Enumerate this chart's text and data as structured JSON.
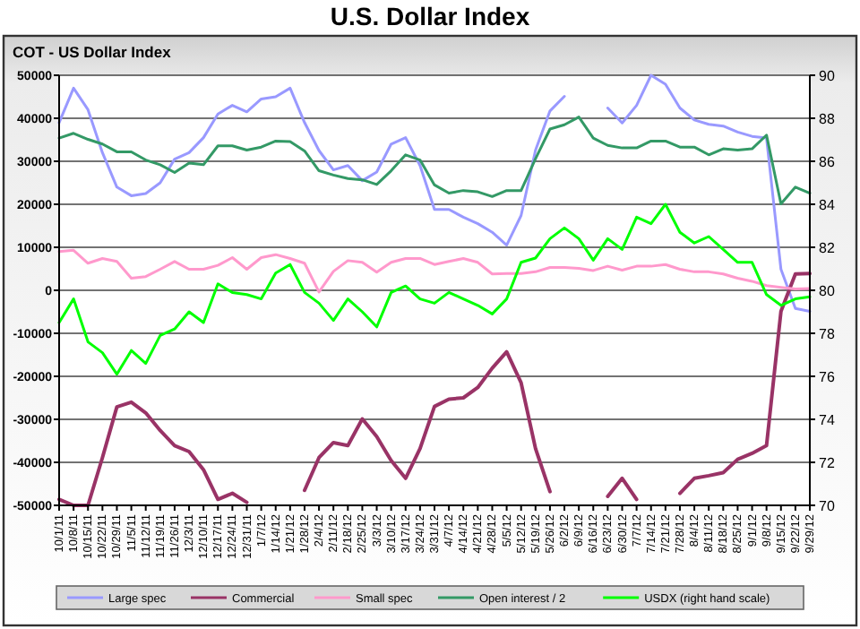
{
  "chart_data": {
    "type": "line",
    "title": "U.S. Dollar Index",
    "subtitle": "COT - US Dollar Index",
    "categories": [
      "10/1/11",
      "10/8/11",
      "10/15/11",
      "10/22/11",
      "10/29/11",
      "11/5/11",
      "11/12/11",
      "11/19/11",
      "11/26/11",
      "12/3/11",
      "12/10/11",
      "12/17/11",
      "12/24/11",
      "12/31/11",
      "1/7/12",
      "1/14/12",
      "1/21/12",
      "1/28/12",
      "2/4/12",
      "2/11/12",
      "2/18/12",
      "2/25/12",
      "3/3/12",
      "3/10/12",
      "3/17/12",
      "3/24/12",
      "3/31/12",
      "4/7/12",
      "4/14/12",
      "4/21/12",
      "4/28/12",
      "5/5/12",
      "5/12/12",
      "5/19/12",
      "5/26/12",
      "6/2/12",
      "6/9/12",
      "6/16/12",
      "6/23/12",
      "6/30/12",
      "7/7/12",
      "7/14/12",
      "7/21/12",
      "7/28/12",
      "8/4/12",
      "8/11/12",
      "8/18/12",
      "8/25/12",
      "9/1/12",
      "9/8/12",
      "9/15/12",
      "9/22/12",
      "9/29/12"
    ],
    "series": [
      {
        "name": "Large spec",
        "color": "#9999ff",
        "values": [
          39000,
          47000,
          42000,
          32000,
          24000,
          22000,
          22500,
          25000,
          30500,
          32000,
          35500,
          41000,
          43000,
          41500,
          44500,
          45000,
          47000,
          39000,
          32500,
          28000,
          29000,
          25500,
          27500,
          34000,
          35500,
          29000,
          18800,
          18800,
          17000,
          15500,
          13500,
          10500,
          17400,
          32600,
          41700,
          45100,
          null,
          null,
          42400,
          38900,
          43000,
          50000,
          47900,
          42400,
          39600,
          38600,
          38200,
          36800,
          35800,
          35400,
          4900,
          -4200,
          -4900
        ]
      },
      {
        "name": "Commercial",
        "color": "#993366",
        "values": [
          -48600,
          -50000,
          -50000,
          -38900,
          -27100,
          -26000,
          -28500,
          -32600,
          -36100,
          -37500,
          -41700,
          -48600,
          -47200,
          -49300,
          null,
          null,
          null,
          -46500,
          -38900,
          -35400,
          -36100,
          -29900,
          -34000,
          -39600,
          -43700,
          -36800,
          -27000,
          -25300,
          -25000,
          -22600,
          -18100,
          -14300,
          -21500,
          -36800,
          -46800,
          null,
          null,
          null,
          -47900,
          -43700,
          -48600,
          null,
          null,
          -47200,
          -43700,
          -43100,
          -42400,
          -39300,
          -37900,
          -36100,
          -4900,
          3800,
          3900
        ]
      },
      {
        "name": "Small spec",
        "color": "#ff99cc",
        "values": [
          9000,
          9300,
          6300,
          7400,
          6700,
          2800,
          3200,
          4900,
          6700,
          4900,
          4900,
          5800,
          7600,
          4900,
          7600,
          8300,
          7400,
          6300,
          -400,
          4400,
          6900,
          6500,
          4200,
          6500,
          7400,
          7400,
          6000,
          6700,
          7400,
          6500,
          3800,
          3900,
          3900,
          4300,
          5300,
          5300,
          5100,
          4600,
          5600,
          4700,
          5600,
          5600,
          6000,
          4900,
          4300,
          4300,
          3800,
          2800,
          2100,
          1100,
          700,
          300,
          400
        ]
      },
      {
        "name": "Open interest / 2",
        "color": "#339966",
        "values": [
          35400,
          36500,
          35100,
          34000,
          32200,
          32200,
          30300,
          29200,
          27400,
          29600,
          29200,
          33600,
          33600,
          32600,
          33300,
          34700,
          34600,
          32400,
          27800,
          26800,
          26000,
          25700,
          24600,
          27800,
          31500,
          30300,
          24500,
          22600,
          23200,
          22900,
          21800,
          23200,
          23200,
          30600,
          37500,
          38500,
          40300,
          35400,
          33700,
          33100,
          33100,
          34700,
          34700,
          33300,
          33300,
          31500,
          32900,
          32600,
          32900,
          36100,
          20100,
          24000,
          22600
        ]
      },
      {
        "name": "USDX (right hand scale)",
        "color": "#00ff00",
        "axis": "y2",
        "values": [
          78.5,
          79.6,
          77.6,
          77.1,
          76.1,
          77.2,
          76.6,
          77.9,
          78.2,
          79.0,
          78.5,
          80.3,
          79.9,
          79.8,
          79.6,
          80.8,
          81.2,
          79.9,
          79.4,
          78.6,
          79.6,
          79.0,
          78.3,
          79.9,
          80.2,
          79.6,
          79.4,
          79.9,
          79.6,
          79.3,
          78.9,
          79.6,
          81.3,
          81.5,
          82.4,
          82.9,
          82.4,
          81.4,
          82.4,
          81.9,
          83.4,
          83.1,
          84.0,
          82.7,
          82.2,
          82.5,
          81.9,
          81.3,
          81.3,
          79.8,
          79.3,
          79.6,
          79.7
        ]
      }
    ],
    "ylim": [
      -50000,
      50000
    ],
    "yticks": [
      -50000,
      -40000,
      -30000,
      -20000,
      -10000,
      0,
      10000,
      20000,
      30000,
      40000,
      50000
    ],
    "y2lim": [
      70,
      90
    ],
    "y2ticks": [
      70,
      72,
      74,
      76,
      78,
      80,
      82,
      84,
      86,
      88,
      90
    ],
    "grid": "y",
    "legend": "bottom",
    "marker": "none",
    "line_style": "solid"
  }
}
